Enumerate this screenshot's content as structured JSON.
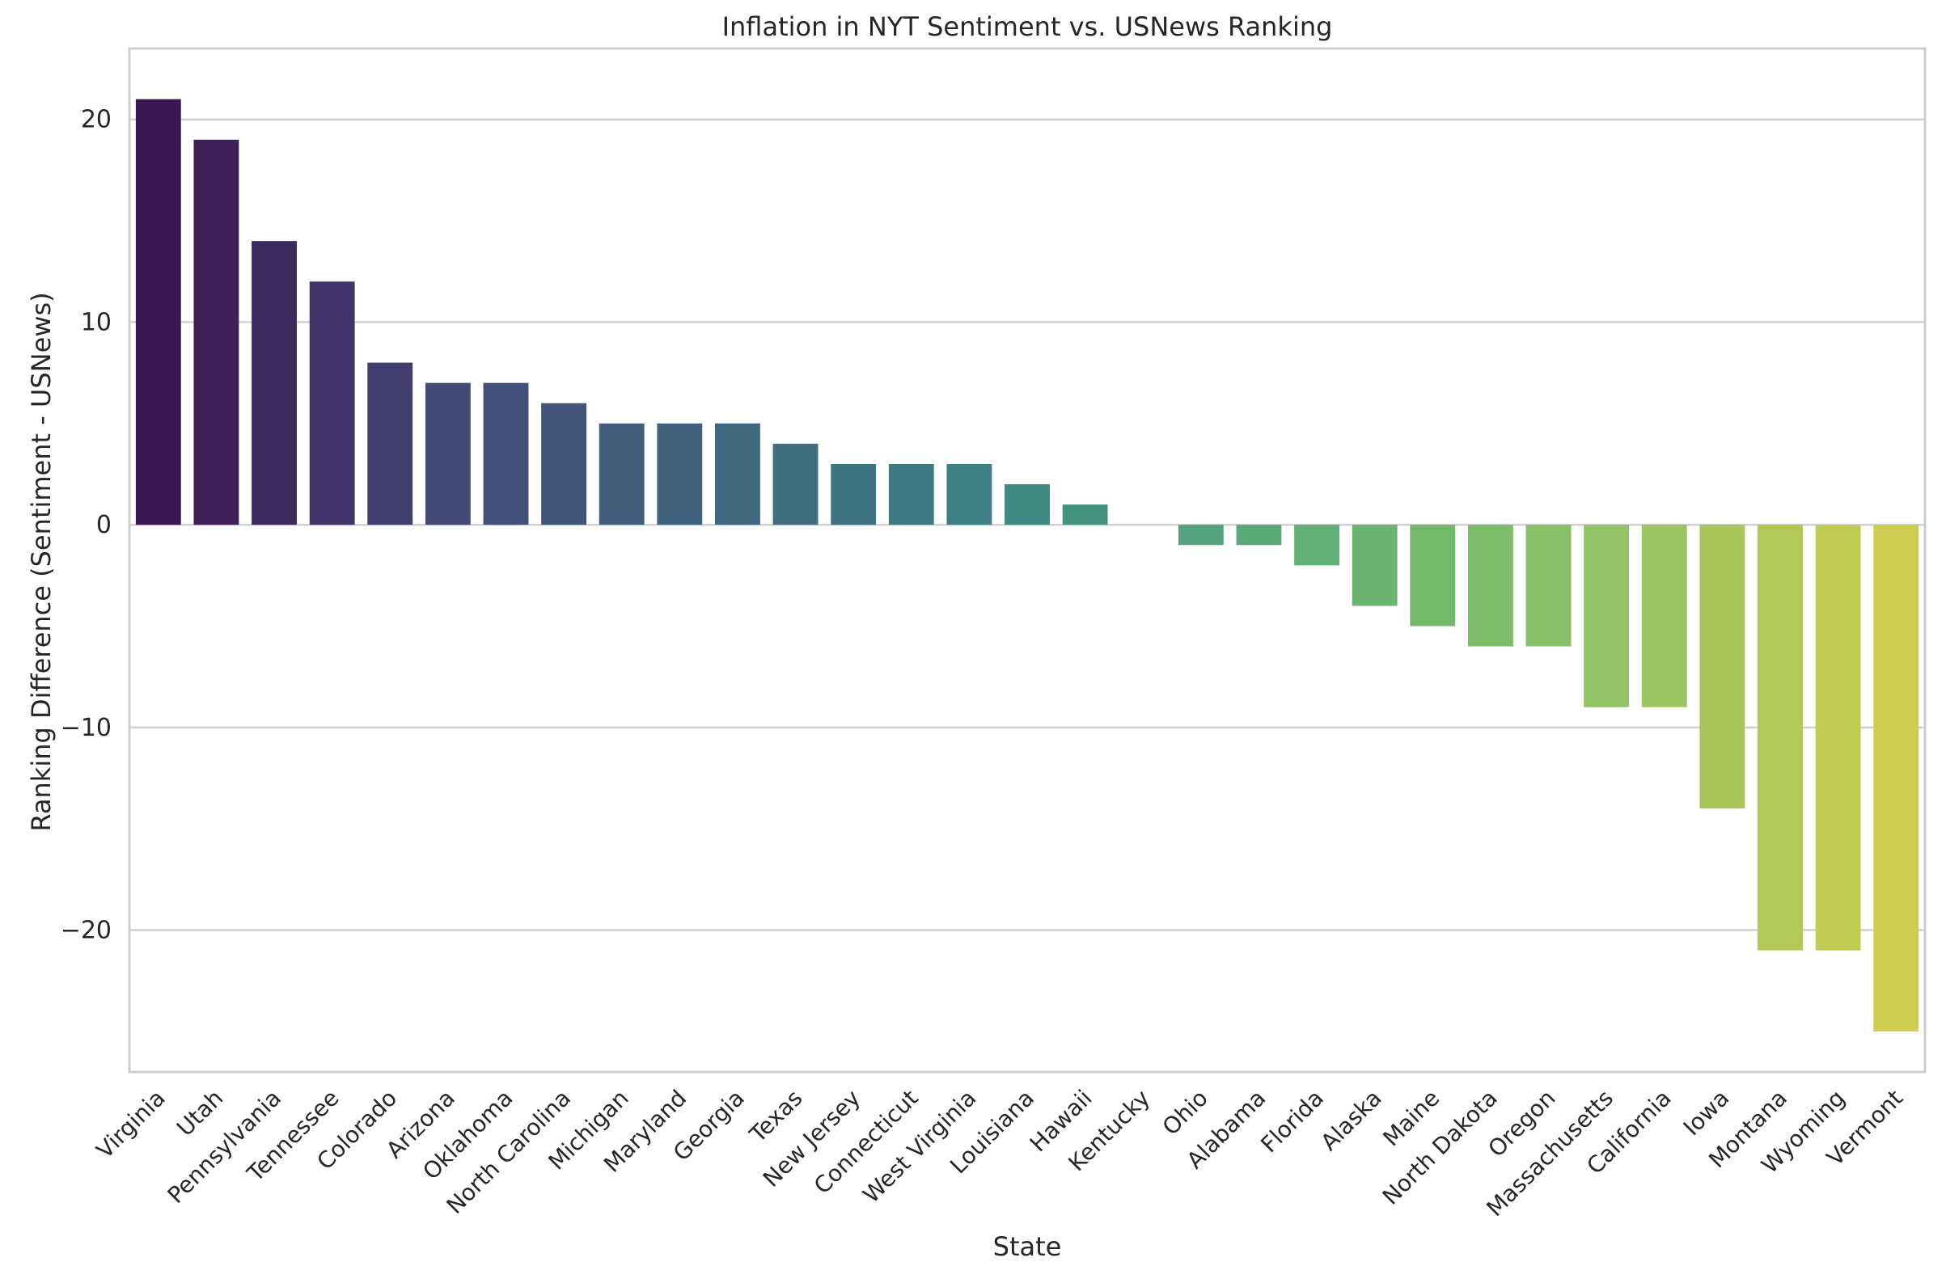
{
  "chart_data": {
    "type": "bar",
    "title": "Inflation in NYT Sentiment vs. USNews Ranking",
    "xlabel": "State",
    "ylabel": "Ranking Difference (Sentiment - USNews)",
    "ylim": [
      -27,
      23.5
    ],
    "yticks": [
      20,
      10,
      0,
      -10,
      -20
    ],
    "yticklabels": [
      "20",
      "10",
      "0",
      "−10",
      "−20"
    ],
    "grid": true,
    "categories": [
      "Virginia",
      "Utah",
      "Pennsylvania",
      "Tennessee",
      "Colorado",
      "Arizona",
      "Oklahoma",
      "North Carolina",
      "Michigan",
      "Maryland",
      "Georgia",
      "Texas",
      "New Jersey",
      "Connecticut",
      "West Virginia",
      "Louisiana",
      "Hawaii",
      "Kentucky",
      "Ohio",
      "Alabama",
      "Florida",
      "Alaska",
      "Maine",
      "North Dakota",
      "Oregon",
      "Massachusetts",
      "California",
      "Iowa",
      "Montana",
      "Wyoming",
      "Vermont"
    ],
    "values": [
      21,
      19,
      14,
      12,
      8,
      7,
      7,
      6,
      5,
      5,
      5,
      4,
      3,
      3,
      3,
      2,
      1,
      0,
      -1,
      -1,
      -2,
      -4,
      -5,
      -6,
      -6,
      -9,
      -9,
      -14,
      -21,
      -21,
      -25
    ],
    "colors": [
      "#3c1852",
      "#3e2158",
      "#3f2a62",
      "#40346a",
      "#423f70",
      "#424a76",
      "#424f78",
      "#43547a",
      "#425c7c",
      "#41627e",
      "#40687f",
      "#3f6e80",
      "#3e7481",
      "#3e7a82",
      "#3d7f82",
      "#3e8981",
      "#43937f",
      "#4a9b7d",
      "#52a37b",
      "#5aaa78",
      "#62b075",
      "#6bb371",
      "#74b86c",
      "#7cbd69",
      "#86c067",
      "#91c364",
      "#9bc561",
      "#a7c65a",
      "#b3c955",
      "#c0cc52",
      "#cdcd51"
    ]
  }
}
